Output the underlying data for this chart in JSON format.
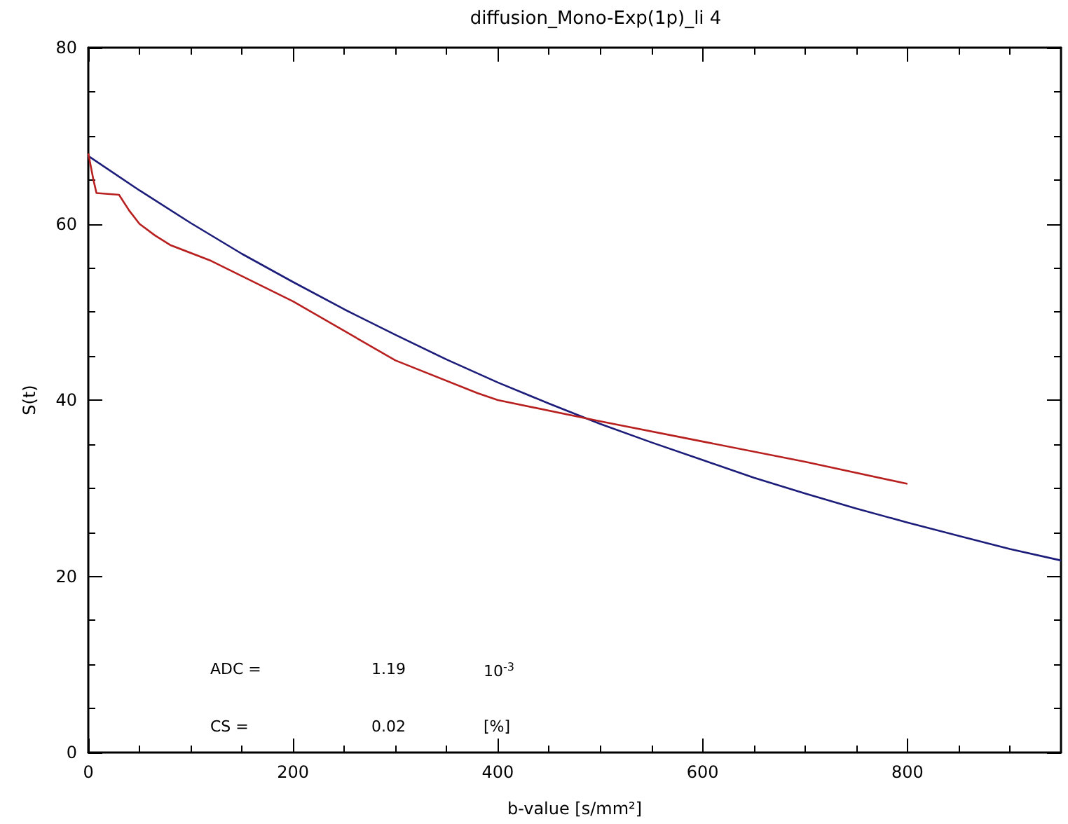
{
  "chart_data": {
    "type": "line",
    "title": "diffusion_Mono-Exp(1p)_li 4",
    "xlabel": "b-value [s/mm²]",
    "ylabel": "S(t)",
    "xlim": [
      0,
      950
    ],
    "xticks": [
      0,
      200,
      400,
      600,
      800
    ],
    "ylim": [
      0,
      80
    ],
    "yticks": [
      0,
      20,
      40,
      60,
      80
    ],
    "grid": false,
    "marker": "none",
    "line_style": "solid",
    "annotations": [
      "ADC =",
      "1.19",
      "10$^{-3}$",
      "CS =",
      "0.02",
      "[%]"
    ],
    "series": [
      {
        "color": "#1c1c7a",
        "x": [
          0,
          50,
          100,
          150,
          200,
          250,
          300,
          350,
          400,
          450,
          500,
          550,
          600,
          650,
          700,
          750,
          800,
          850,
          900,
          950
        ],
        "values": [
          67.7,
          63.8,
          60.1,
          56.6,
          53.4,
          50.3,
          47.4,
          44.6,
          42.0,
          39.6,
          37.3,
          35.2,
          33.2,
          31.2,
          29.4,
          27.7,
          26.1,
          24.6,
          23.1,
          21.8
        ]
      },
      {
        "color": "#b82020",
        "x": [
          0,
          5,
          8,
          30,
          40,
          50,
          65,
          80,
          120,
          200,
          300,
          380,
          400,
          500,
          600,
          700,
          800
        ],
        "values": [
          68,
          65,
          63.5,
          63.3,
          61.5,
          60,
          58.7,
          57.6,
          55.8,
          51.2,
          44.5,
          40.8,
          40,
          37.6,
          35.3,
          33,
          30.5
        ]
      }
    ]
  }
}
